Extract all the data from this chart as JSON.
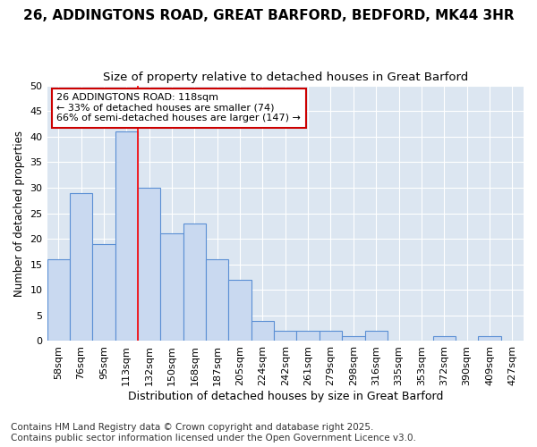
{
  "title1": "26, ADDINGTONS ROAD, GREAT BARFORD, BEDFORD, MK44 3HR",
  "title2": "Size of property relative to detached houses in Great Barford",
  "xlabel": "Distribution of detached houses by size in Great Barford",
  "ylabel": "Number of detached properties",
  "bins": [
    "58sqm",
    "76sqm",
    "95sqm",
    "113sqm",
    "132sqm",
    "150sqm",
    "168sqm",
    "187sqm",
    "205sqm",
    "224sqm",
    "242sqm",
    "261sqm",
    "279sqm",
    "298sqm",
    "316sqm",
    "335sqm",
    "353sqm",
    "372sqm",
    "390sqm",
    "409sqm",
    "427sqm"
  ],
  "values": [
    16,
    29,
    19,
    41,
    30,
    21,
    23,
    16,
    12,
    4,
    2,
    2,
    2,
    1,
    2,
    0,
    0,
    1,
    0,
    1,
    0
  ],
  "bar_color": "#c9d9f0",
  "bar_edge_color": "#5b8fd4",
  "plot_bg_color": "#dce6f1",
  "fig_bg_color": "#ffffff",
  "grid_color": "#ffffff",
  "red_line_bin_index": 4,
  "annotation_text": "26 ADDINGTONS ROAD: 118sqm\n← 33% of detached houses are smaller (74)\n66% of semi-detached houses are larger (147) →",
  "annotation_box_color": "#ffffff",
  "annotation_box_edge": "#cc0000",
  "ylim": [
    0,
    50
  ],
  "yticks": [
    0,
    5,
    10,
    15,
    20,
    25,
    30,
    35,
    40,
    45,
    50
  ],
  "footer": "Contains HM Land Registry data © Crown copyright and database right 2025.\nContains public sector information licensed under the Open Government Licence v3.0.",
  "title1_fontsize": 11,
  "title2_fontsize": 9.5,
  "xlabel_fontsize": 9,
  "ylabel_fontsize": 8.5,
  "tick_fontsize": 8,
  "annotation_fontsize": 8,
  "footer_fontsize": 7.5
}
